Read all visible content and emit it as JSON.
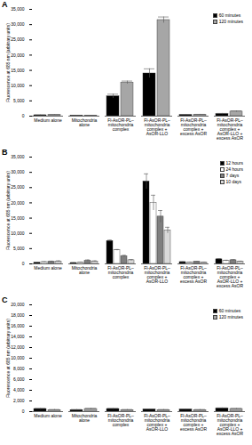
{
  "chart_data": [
    {
      "type": "bar",
      "title": "A",
      "y_label": "Fluorescence at 685 nm (arbitrary units)",
      "categories": [
        "Medium alone",
        "Mitochondria alone",
        "Fl-AsOR-PL–mitochondria complex",
        "Fl-AsOR-PL–mitochondria complex + AsOR-LLO",
        "Fl-AsOR-PL–mitochondria complex + excess AsOR",
        "Fl-AsOR-PL–mitochondria complex + AsOR-LLO + excess AsOR"
      ],
      "series": [
        {
          "name": "60 minutes",
          "color": "#000000",
          "values": [
            300,
            200,
            6500,
            14000,
            400,
            700
          ],
          "errors": [
            100,
            50,
            700,
            1500,
            100,
            200
          ]
        },
        {
          "name": "120 minutes",
          "color": "#a6a6a6",
          "values": [
            400,
            200,
            11000,
            31500,
            500,
            1500
          ],
          "errors": [
            100,
            50,
            500,
            1000,
            100,
            200
          ]
        }
      ],
      "ylim": [
        0,
        35000
      ],
      "yticks": [
        0,
        {
          "value": 5000,
          "label": "5,000"
        },
        {
          "value": 10000,
          "label": "10,000"
        },
        {
          "value": 15000,
          "label": "15,000"
        },
        {
          "value": 20000,
          "label": "20,000"
        },
        {
          "value": 25000,
          "label": "25,000"
        },
        {
          "value": 30000,
          "label": "30,000"
        },
        {
          "value": 35000,
          "label": "35,000"
        }
      ],
      "grid": false,
      "legend": "top-right"
    },
    {
      "type": "bar",
      "title": "B",
      "y_label": "Fluorescence at 685 nm (arbitrary units)",
      "categories": [
        "Medium alone",
        "Mitochondria alone",
        "Fl-AsOR-PL–mitochondria complex",
        "Fl-AsOR-PL–mitochondria complex + AsOR-LLO",
        "Fl-AsOR-PL–mitochondria complex + excess AsOR",
        "Fl-AsOR-PL–mitochondria complex + AsOR-LLO + excess AsOR"
      ],
      "series": [
        {
          "name": "12 hours",
          "color": "#000000",
          "values": [
            400,
            300,
            7500,
            27000,
            600,
            1500
          ],
          "errors": [
            100,
            100,
            300,
            2500,
            100,
            200
          ]
        },
        {
          "name": "24 hours",
          "color": "#ffffff",
          "values": [
            600,
            500,
            4500,
            20000,
            500,
            1000
          ],
          "errors": [
            100,
            100,
            200,
            2500,
            100,
            200
          ]
        },
        {
          "name": "7 days",
          "color": "#7f7f7f",
          "values": [
            700,
            1000,
            2500,
            15500,
            700,
            1200
          ],
          "errors": [
            200,
            300,
            300,
            2000,
            100,
            200
          ]
        },
        {
          "name": "10 days",
          "color": "#d9d9d9",
          "values": [
            800,
            800,
            1200,
            11000,
            500,
            800
          ],
          "errors": [
            200,
            200,
            200,
            1000,
            100,
            100
          ]
        }
      ],
      "ylim": [
        0,
        35000
      ],
      "yticks": [
        0,
        {
          "value": 5000,
          "label": "5,000"
        },
        {
          "value": 10000,
          "label": "10,000"
        },
        {
          "value": 15000,
          "label": "15,000"
        },
        {
          "value": 20000,
          "label": "20,000"
        },
        {
          "value": 25000,
          "label": "25,000"
        },
        {
          "value": 30000,
          "label": "30,000"
        },
        {
          "value": 35000,
          "label": "35,000"
        }
      ],
      "grid": false,
      "legend": "top-right"
    },
    {
      "type": "bar",
      "title": "C",
      "y_label": "Fluorescence at 685 nm (arbitrary units)",
      "categories": [
        "Medium alone",
        "Mitochondria alone",
        "Fl-AsOR-PL–mitochondria complex",
        "Fl-AsOR-PL–mitochondria complex + AsOR-LLO",
        "Fl-AsOR-PL–mitochondria complex + excess AsOR",
        "Fl-AsOR-PL–mitochondria complex + AsOR-LLO + excess AsOR"
      ],
      "series": [
        {
          "name": "60 minutes",
          "color": "#000000",
          "values": [
            500,
            300,
            500,
            400,
            400,
            600
          ],
          "errors": [
            100,
            100,
            100,
            100,
            100,
            100
          ]
        },
        {
          "name": "120 minutes",
          "color": "#a6a6a6",
          "values": [
            300,
            500,
            300,
            300,
            300,
            500
          ],
          "errors": [
            100,
            100,
            100,
            100,
            100,
            100
          ]
        }
      ],
      "ylim": [
        0,
        20000
      ],
      "yticks": [
        0,
        {
          "value": 2000,
          "label": "2,000"
        },
        {
          "value": 4000,
          "label": "4,000"
        },
        {
          "value": 6000,
          "label": "6,000"
        },
        {
          "value": 8000,
          "label": "8,000"
        },
        {
          "value": 10000,
          "label": "10,000"
        },
        {
          "value": 12000,
          "label": "12,000"
        },
        {
          "value": 14000,
          "label": "14,000"
        },
        {
          "value": 16000,
          "label": "16,000"
        },
        {
          "value": 18000,
          "label": "18,000"
        },
        {
          "value": 20000,
          "label": "20,000"
        }
      ],
      "grid": false,
      "legend": "top-right"
    }
  ]
}
